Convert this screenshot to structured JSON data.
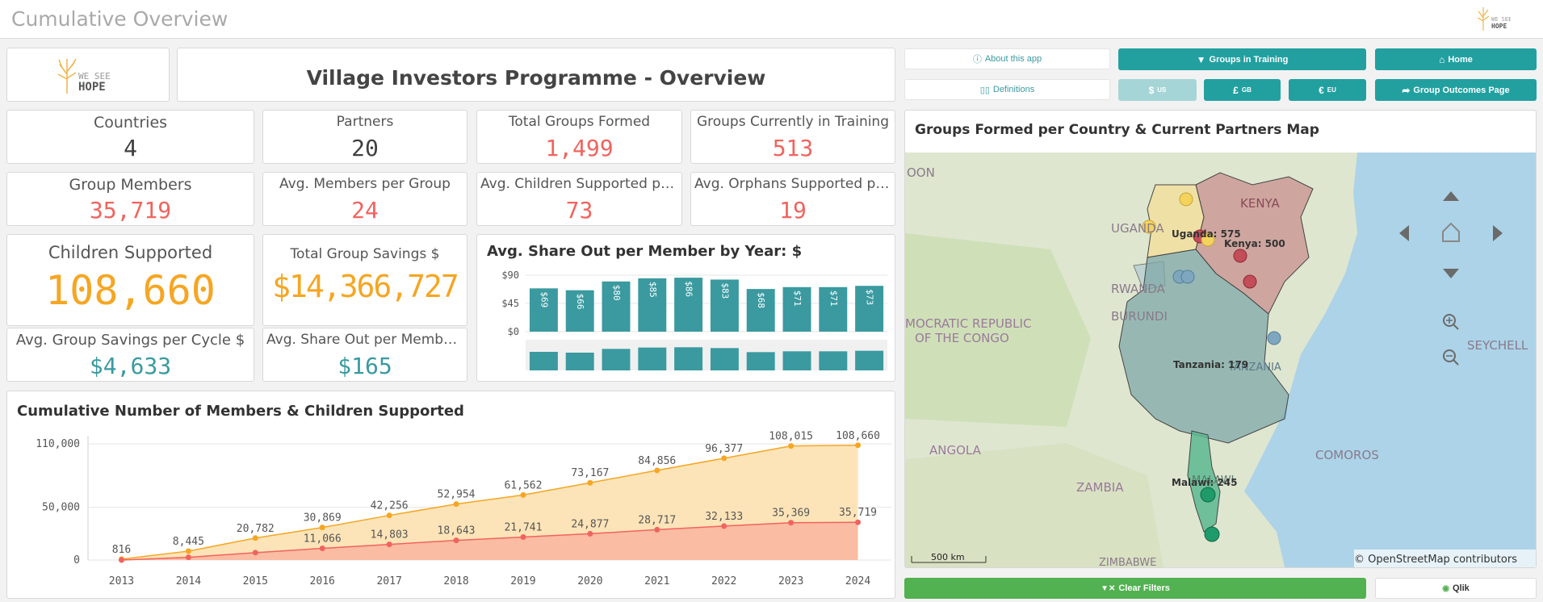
{
  "app": {
    "title": "Cumulative Overview"
  },
  "logo": {
    "line1": "WE SEE",
    "line2": "HOPE"
  },
  "header": {
    "title": "Village Investors Programme - Overview"
  },
  "kpis": {
    "countries": {
      "label": "Countries",
      "value": "4"
    },
    "partners": {
      "label": "Partners",
      "value": "20"
    },
    "total_groups": {
      "label": "Total Groups Formed",
      "value": "1,499"
    },
    "groups_training": {
      "label": "Groups Currently in Training",
      "value": "513"
    },
    "group_members": {
      "label": "Group Members",
      "value": "35,719"
    },
    "avg_members": {
      "label": "Avg. Members per Group",
      "value": "24"
    },
    "avg_children": {
      "label": "Avg. Children Supported per G...",
      "value": "73"
    },
    "avg_orphans": {
      "label": "Avg. Orphans Supported per ...",
      "value": "19"
    },
    "children_supported": {
      "label": "Children Supported",
      "value": "108,660"
    },
    "total_savings": {
      "label": "Total Group Savings $",
      "value": "$14,366,727"
    },
    "avg_savings_cycle": {
      "label": "Avg. Group Savings per Cycle $",
      "value": "$4,633"
    },
    "avg_share_out": {
      "label": "Avg. Share Out per Member $",
      "value": "$165"
    }
  },
  "buttons": {
    "about": "About this app",
    "groups_training": "Groups in Training",
    "home": "Home",
    "definitions": "Definitions",
    "usd_symbol": "$",
    "usd_code": "US",
    "gbp_symbol": "£",
    "gbp_code": "GB",
    "eur_symbol": "€",
    "eur_code": "EU",
    "outcomes": "Group Outcomes Page",
    "clear_filters": "Clear Filters",
    "qlik": "Qlik"
  },
  "colors": {
    "teal": "#22a0a0",
    "bar": "#3a9aa0",
    "red": "#f0645f",
    "orange": "#f5a623",
    "green": "#52b150"
  },
  "chart_data": [
    {
      "type": "bar",
      "title": "Avg. Share Out per Member by Year: $",
      "values": [
        69,
        66,
        80,
        85,
        86,
        83,
        68,
        71,
        71,
        73
      ],
      "labels": [
        "$69",
        "$66",
        "$80",
        "$85",
        "$86",
        "$83",
        "$68",
        "$71",
        "$71",
        "$73"
      ],
      "ticks": [
        "$90",
        "$45",
        "$0"
      ],
      "tick_values": [
        90,
        45,
        0
      ],
      "ylim": [
        0,
        90
      ],
      "grid": true,
      "legend": "none"
    },
    {
      "type": "area",
      "title": "Cumulative Number of Members & Children Supported",
      "categories": [
        "2013",
        "2014",
        "2015",
        "2016",
        "2017",
        "2018",
        "2019",
        "2020",
        "2021",
        "2022",
        "2023",
        "2024"
      ],
      "series": [
        {
          "color": "#f5a623",
          "values": [
            816,
            8445,
            20782,
            30869,
            42256,
            52954,
            61562,
            73167,
            84856,
            96377,
            108015,
            108660
          ],
          "labels": [
            "816",
            "8,445",
            "20,782",
            "30,869",
            "42,256",
            "52,954",
            "61,562",
            "73,167",
            "84,856",
            "96,377",
            "108,015",
            "108,660"
          ]
        },
        {
          "color": "#f0645f",
          "values": [
            0,
            2600,
            7000,
            11066,
            14803,
            18643,
            21741,
            24877,
            28717,
            32133,
            35369,
            35719
          ],
          "labels": [
            "",
            "",
            "",
            "11,066",
            "14,803",
            "18,643",
            "21,741",
            "24,877",
            "28,717",
            "32,133",
            "35,369",
            "35,719"
          ]
        }
      ],
      "ticks": [
        "110,000",
        "50,000",
        "0"
      ],
      "tick_values": [
        110000,
        50000,
        0
      ],
      "ylim": [
        0,
        110000
      ],
      "grid": true,
      "legend": "none"
    }
  ],
  "map": {
    "title": "Groups Formed per Country & Current Partners Map",
    "regions": {
      "kenya": "KENYA",
      "uganda": "UGANDA",
      "rwanda": "RWANDA",
      "burundi": "BURUNDI",
      "tanzania": "TANZANIA",
      "malawi": "MALAWI",
      "drc_line1": "MOCRATIC REPUBLIC",
      "drc_line2": "OF THE CONGO",
      "angola": "ANGOLA",
      "zambia": "ZAMBIA",
      "comoros": "COMOROS",
      "seychelles": "SEYCHELL",
      "cameroon": "OON",
      "zimbabwe": "ZIMBABWE"
    },
    "country_labels": {
      "uganda": "Uganda: 575",
      "kenya": "Kenya: 500",
      "tanzania": "Tanzania: 179",
      "malawi": "Malawi: 245"
    },
    "scale": "500 km",
    "attribution": "© OpenStreetMap contributors"
  }
}
